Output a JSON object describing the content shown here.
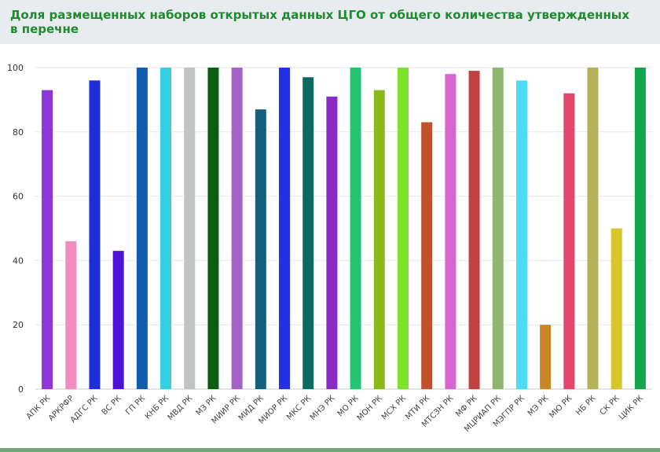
{
  "title": "Доля размещенных наборов открытых данных ЦГО от общего количества утвержденных в перечне",
  "chart_data": {
    "type": "bar",
    "title": "Доля размещенных наборов открытых данных ЦГО от общего количества утвержденных в перечне",
    "xlabel": "",
    "ylabel": "",
    "ylim": [
      0,
      100
    ],
    "yticks": [
      0,
      20,
      40,
      60,
      80,
      100
    ],
    "grid": true,
    "categories": [
      "АПК РК",
      "АРКРФР",
      "АДГС РК",
      "ВС РК",
      "ГП РК",
      "КНБ РК",
      "МВД РК",
      "МЗ РК",
      "МИИР РК",
      "МИД РК",
      "МИОР РК",
      "МКС РК",
      "МНЭ РК",
      "МО РК",
      "МОН РК",
      "МСХ РК",
      "МТИ РК",
      "МТСЗН РК",
      "МФ РК",
      "МЦРИАП РК",
      "МЭГПР РК",
      "МЭ РК",
      "МЮ РК",
      "НБ РК",
      "СК РК",
      "ЦИК РК"
    ],
    "values": [
      93,
      46,
      96,
      43,
      100,
      100,
      100,
      100,
      100,
      87,
      100,
      97,
      91,
      100,
      93,
      100,
      83,
      98,
      99,
      100,
      96,
      20,
      92,
      100,
      50,
      100
    ],
    "colors": [
      "#8e35d8",
      "#f58cc0",
      "#1f2ed8",
      "#4c12d6",
      "#0f5eb0",
      "#33d0e3",
      "#bfc3c1",
      "#0b5e10",
      "#a461c8",
      "#13607e",
      "#2231e4",
      "#0b6a5f",
      "#8a2cc4",
      "#26c471",
      "#8db81a",
      "#7de22b",
      "#c2502a",
      "#d866cf",
      "#c0413f",
      "#8fb66e",
      "#4ed9f5",
      "#c88626",
      "#e2486e",
      "#b3b35a",
      "#d6c52b",
      "#14a64c"
    ]
  }
}
